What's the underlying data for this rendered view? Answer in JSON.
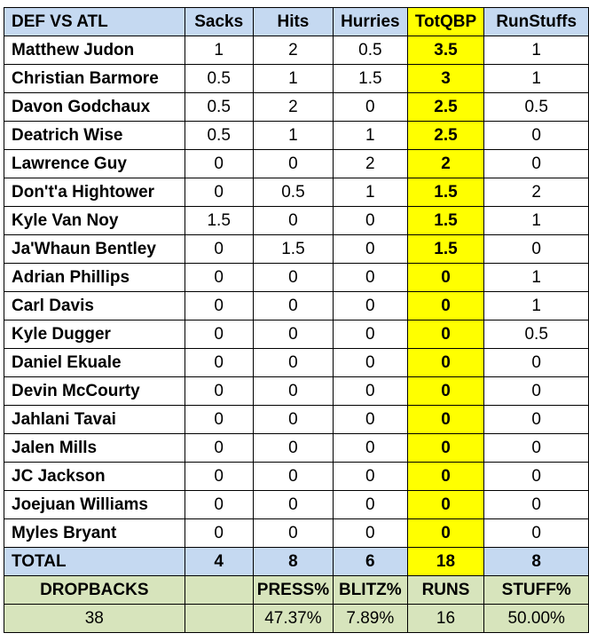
{
  "table": {
    "header": [
      "DEF VS ATL",
      "Sacks",
      "Hits",
      "Hurries",
      "TotQBP",
      "RunStuffs"
    ],
    "rows": [
      [
        "Matthew Judon",
        1,
        2,
        0.5,
        3.5,
        1
      ],
      [
        "Christian Barmore",
        0.5,
        1,
        1.5,
        3,
        1
      ],
      [
        "Davon Godchaux",
        0.5,
        2,
        0,
        2.5,
        0.5
      ],
      [
        "Deatrich Wise",
        0.5,
        1,
        1,
        2.5,
        0
      ],
      [
        "Lawrence Guy",
        0,
        0,
        2,
        2,
        0
      ],
      [
        "Don't'a Hightower",
        0,
        0.5,
        1,
        1.5,
        2
      ],
      [
        "Kyle Van Noy",
        1.5,
        0,
        0,
        1.5,
        1
      ],
      [
        "Ja'Whaun Bentley",
        0,
        1.5,
        0,
        1.5,
        0
      ],
      [
        "Adrian Phillips",
        0,
        0,
        0,
        0,
        1
      ],
      [
        "Carl Davis",
        0,
        0,
        0,
        0,
        1
      ],
      [
        "Kyle Dugger",
        0,
        0,
        0,
        0,
        0.5
      ],
      [
        "Daniel Ekuale",
        0,
        0,
        0,
        0,
        0
      ],
      [
        "Devin McCourty",
        0,
        0,
        0,
        0,
        0
      ],
      [
        "Jahlani Tavai",
        0,
        0,
        0,
        0,
        0
      ],
      [
        "Jalen Mills",
        0,
        0,
        0,
        0,
        0
      ],
      [
        "JC Jackson",
        0,
        0,
        0,
        0,
        0
      ],
      [
        "Joejuan Williams",
        0,
        0,
        0,
        0,
        0
      ],
      [
        "Myles Bryant",
        0,
        0,
        0,
        0,
        0
      ]
    ],
    "total": [
      "TOTAL",
      4,
      8,
      6,
      18,
      8
    ],
    "footer_header": [
      "DROPBACKS",
      null,
      "PRESS%",
      "BLITZ%",
      "RUNS",
      "STUFF%"
    ],
    "footer_values": [
      38,
      null,
      "47.37%",
      "7.89%",
      16,
      "50.00%"
    ]
  }
}
